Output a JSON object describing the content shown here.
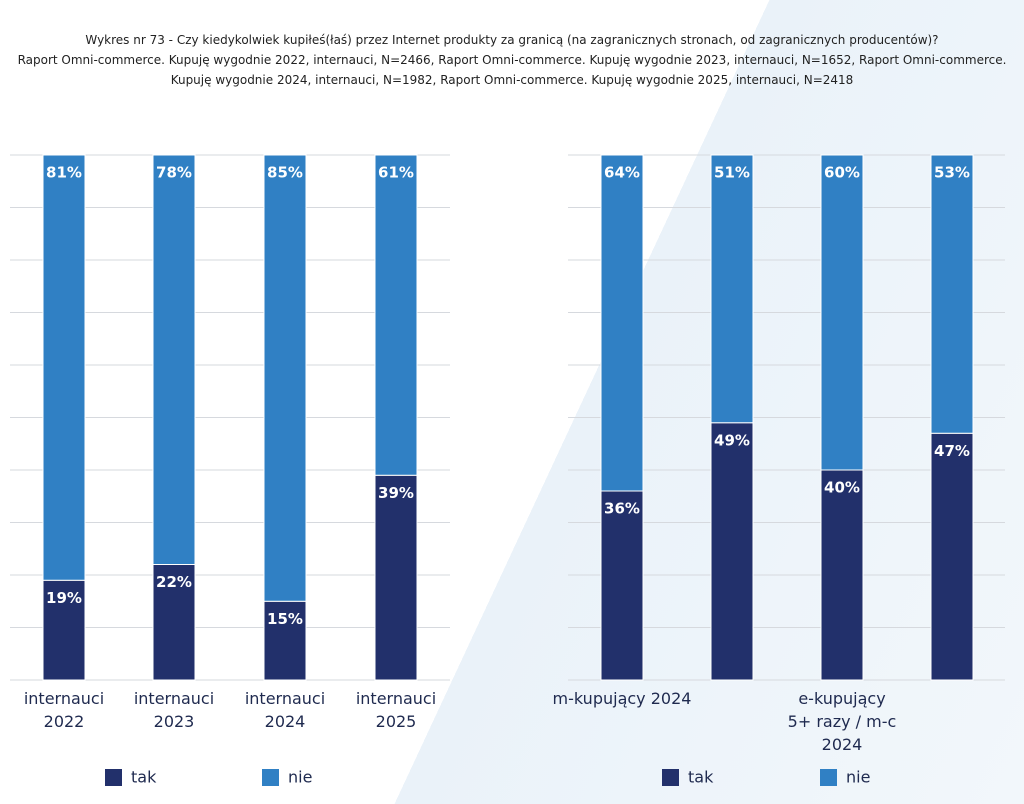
{
  "header": {
    "title": "Wykres nr 73 - Czy kiedykolwiek kupiłeś(łaś) przez Internet produkty za granicą (na zagranicznych stronach, od zagranicznych producentów)?",
    "subtitle": "Raport Omni-commerce. Kupuję wygodnie 2022, internauci, N=2466, Raport Omni-commerce. Kupuję wygodnie 2023, internauci, N=1652, Raport Omni-commerce.\nKupuję wygodnie 2024, internauci, N=1982, Raport Omni-commerce. Kupuję wygodnie 2025, internauci, N=2418"
  },
  "chart_data": [
    {
      "type": "stacked-bar",
      "categories": [
        "internauci\n2022",
        "internauci\n2023",
        "internauci\n2024",
        "internauci\n2025"
      ],
      "series": [
        {
          "name": "tak",
          "color": "#22306b",
          "values": [
            19,
            22,
            15,
            39
          ],
          "value_labels": [
            "19%",
            "22%",
            "15%",
            "39%"
          ]
        },
        {
          "name": "nie",
          "color": "#3080c4",
          "values": [
            81,
            78,
            85,
            61
          ],
          "value_labels": [
            "81%",
            "78%",
            "85%",
            "61%"
          ]
        }
      ],
      "ylim": [
        0,
        100
      ],
      "yticks": [
        0,
        10,
        20,
        30,
        40,
        50,
        60,
        70,
        80,
        90,
        100
      ],
      "grid": true,
      "legend": "bottom"
    },
    {
      "type": "stacked-bar",
      "categories": [
        "m-kupujący 2024",
        null,
        "e-kupujący\n5+ razy / m-c\n2024",
        null
      ],
      "series": [
        {
          "name": "tak",
          "color": "#22306b",
          "values": [
            36,
            49,
            40,
            47
          ],
          "value_labels": [
            "36%",
            "49%",
            "40%",
            "47%"
          ]
        },
        {
          "name": "nie",
          "color": "#3080c4",
          "values": [
            64,
            51,
            60,
            53
          ],
          "value_labels": [
            "64%",
            "51%",
            "60%",
            "53%"
          ]
        }
      ],
      "ylim": [
        0,
        100
      ],
      "yticks": [
        0,
        10,
        20,
        30,
        40,
        50,
        60,
        70,
        80,
        90,
        100
      ],
      "grid": true,
      "legend": "bottom"
    }
  ]
}
